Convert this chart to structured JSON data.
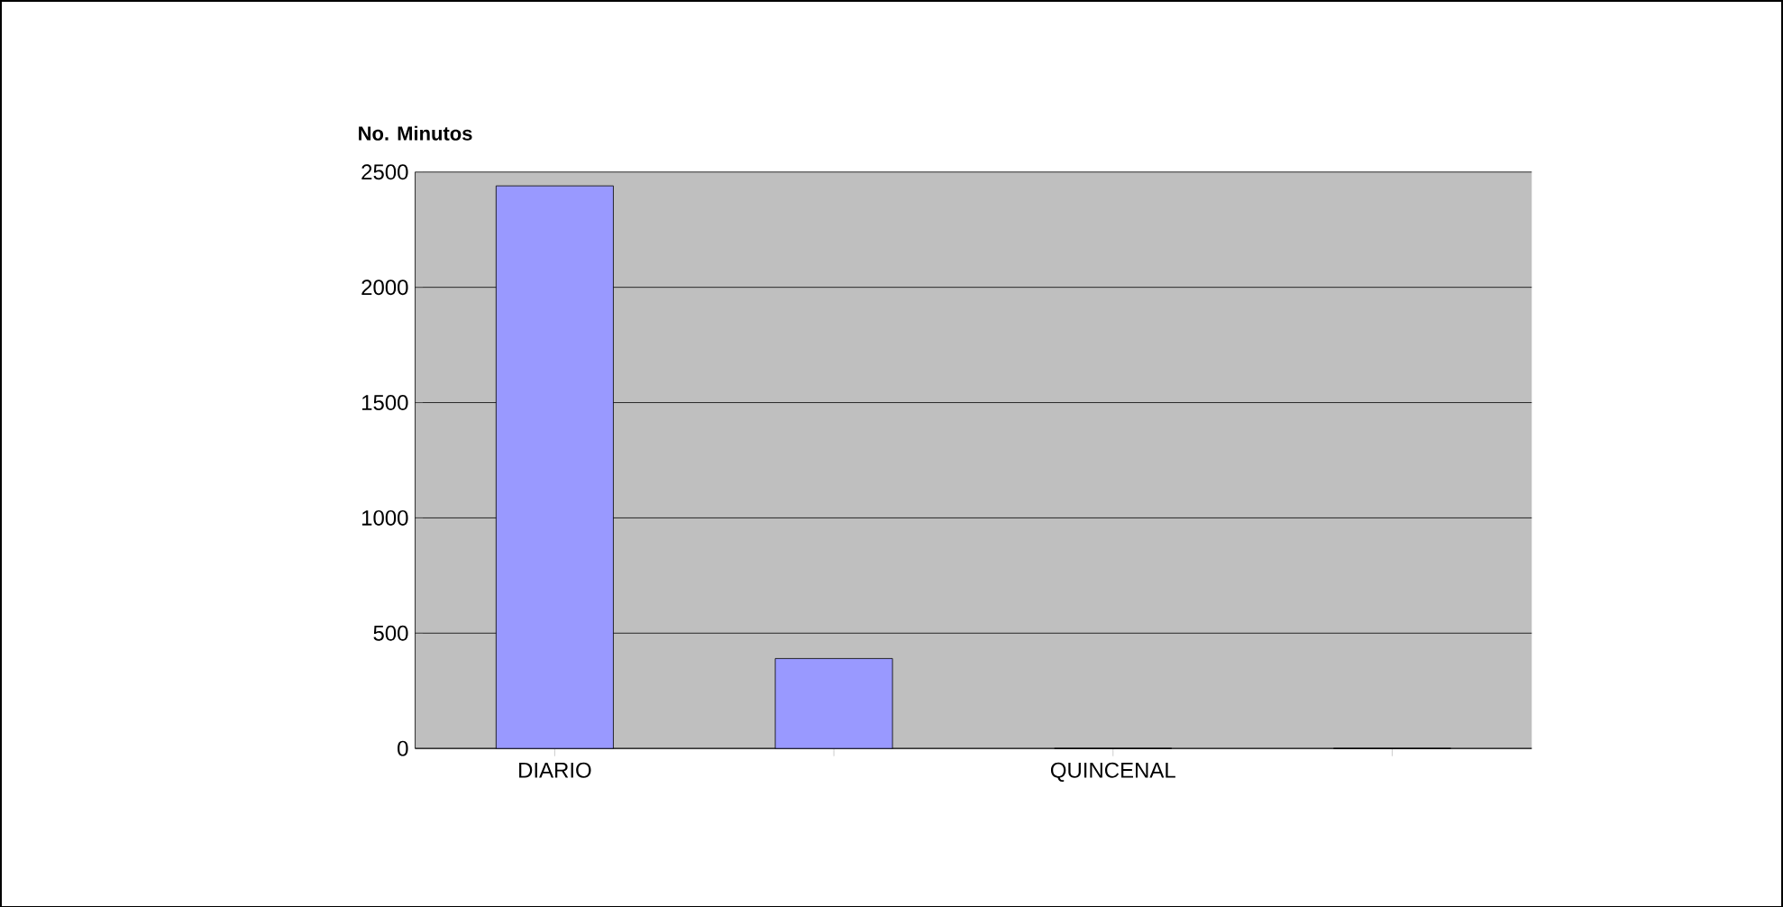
{
  "chart_data": {
    "type": "bar",
    "ylabel": "No. Minutos",
    "categories": [
      "DIARIO",
      null,
      "QUINCENAL",
      null
    ],
    "values": [
      2440,
      390,
      0,
      0
    ],
    "color": "#9999ff",
    "ylim": [
      0,
      2500
    ],
    "yticks": [
      0,
      500,
      1000,
      1500,
      2000,
      2500
    ],
    "grid": "y"
  }
}
